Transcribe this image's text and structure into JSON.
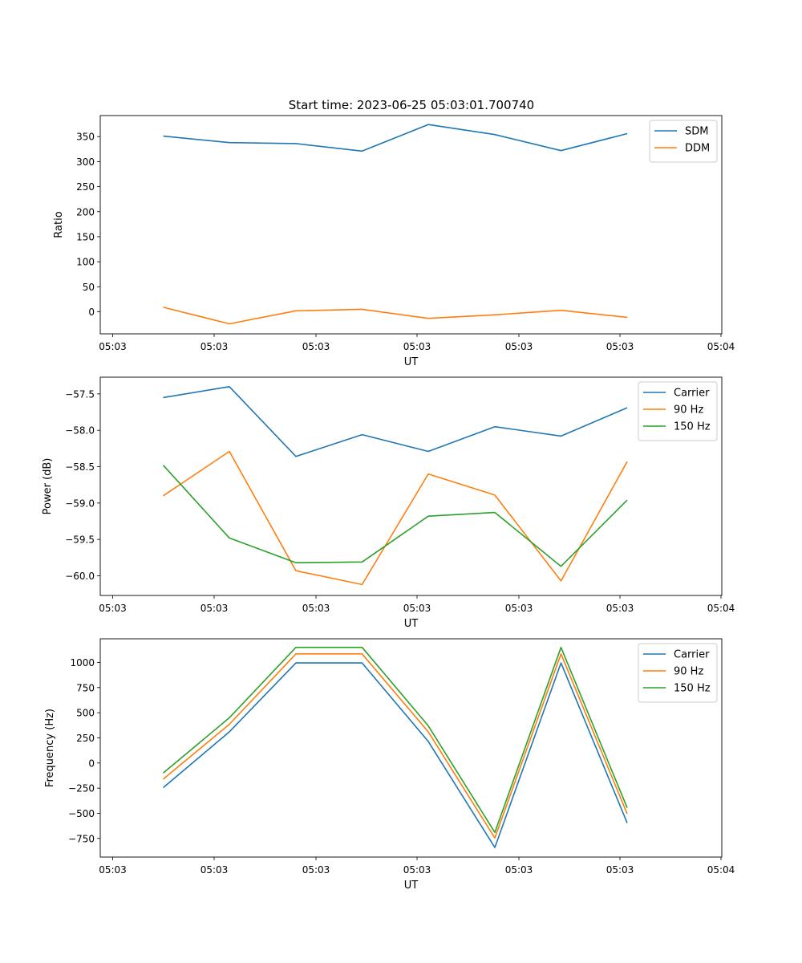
{
  "title": "Start time: 2023-06-25 05:03:01.700740",
  "xtick_labels": [
    "05:03",
    "05:03",
    "05:03",
    "05:03",
    "05:03",
    "05:03",
    "05:04"
  ],
  "chart_data": [
    {
      "type": "line",
      "xlabel": "UT",
      "ylabel": "Ratio",
      "ylim": [
        -44,
        392
      ],
      "yticks": [
        0,
        50,
        100,
        150,
        200,
        250,
        300,
        350
      ],
      "legend_position": "top-right",
      "series": [
        {
          "name": "SDM",
          "color": "#1f77b4",
          "values": [
            351,
            338,
            336,
            321,
            374,
            354,
            322,
            356
          ]
        },
        {
          "name": "DDM",
          "color": "#ff7f0e",
          "values": [
            9,
            -24,
            2,
            5,
            -13,
            -6,
            3,
            -11
          ]
        }
      ]
    },
    {
      "type": "line",
      "xlabel": "UT",
      "ylabel": "Power (dB)",
      "ylim": [
        -60.27,
        -57.27
      ],
      "yticks": [
        -57.5,
        -58.0,
        -58.5,
        -59.0,
        -59.5,
        -60.0
      ],
      "ytick_labels": [
        "−57.5",
        "−58.0",
        "−58.5",
        "−59.0",
        "−59.5",
        "−60.0"
      ],
      "legend_position": "top-right",
      "series": [
        {
          "name": "Carrier",
          "color": "#1f77b4",
          "values": [
            -57.55,
            -57.4,
            -58.36,
            -58.06,
            -58.29,
            -57.95,
            -58.08,
            -57.69
          ]
        },
        {
          "name": "90 Hz",
          "color": "#ff7f0e",
          "values": [
            -58.9,
            -58.29,
            -59.93,
            -60.12,
            -58.6,
            -58.89,
            -60.07,
            -58.43
          ]
        },
        {
          "name": "150 Hz",
          "color": "#2ca02c",
          "values": [
            -58.48,
            -59.48,
            -59.82,
            -59.81,
            -59.18,
            -59.13,
            -59.87,
            -58.96
          ]
        }
      ]
    },
    {
      "type": "line",
      "xlabel": "UT",
      "ylabel": "Frequency (Hz)",
      "ylim": [
        -935,
        1235
      ],
      "yticks": [
        -750,
        -500,
        -250,
        0,
        250,
        500,
        750,
        1000
      ],
      "ytick_labels": [
        "−750",
        "−500",
        "−250",
        "0",
        "250",
        "500",
        "750",
        "1000"
      ],
      "legend_position": "top-right",
      "series": [
        {
          "name": "Carrier",
          "color": "#1f77b4",
          "values": [
            -245,
            310,
            995,
            995,
            215,
            -840,
            995,
            -595
          ]
        },
        {
          "name": "90 Hz",
          "color": "#ff7f0e",
          "values": [
            -160,
            385,
            1085,
            1085,
            310,
            -745,
            1085,
            -505
          ]
        },
        {
          "name": "150 Hz",
          "color": "#2ca02c",
          "values": [
            -100,
            450,
            1150,
            1150,
            370,
            -690,
            1150,
            -445
          ]
        }
      ]
    }
  ]
}
